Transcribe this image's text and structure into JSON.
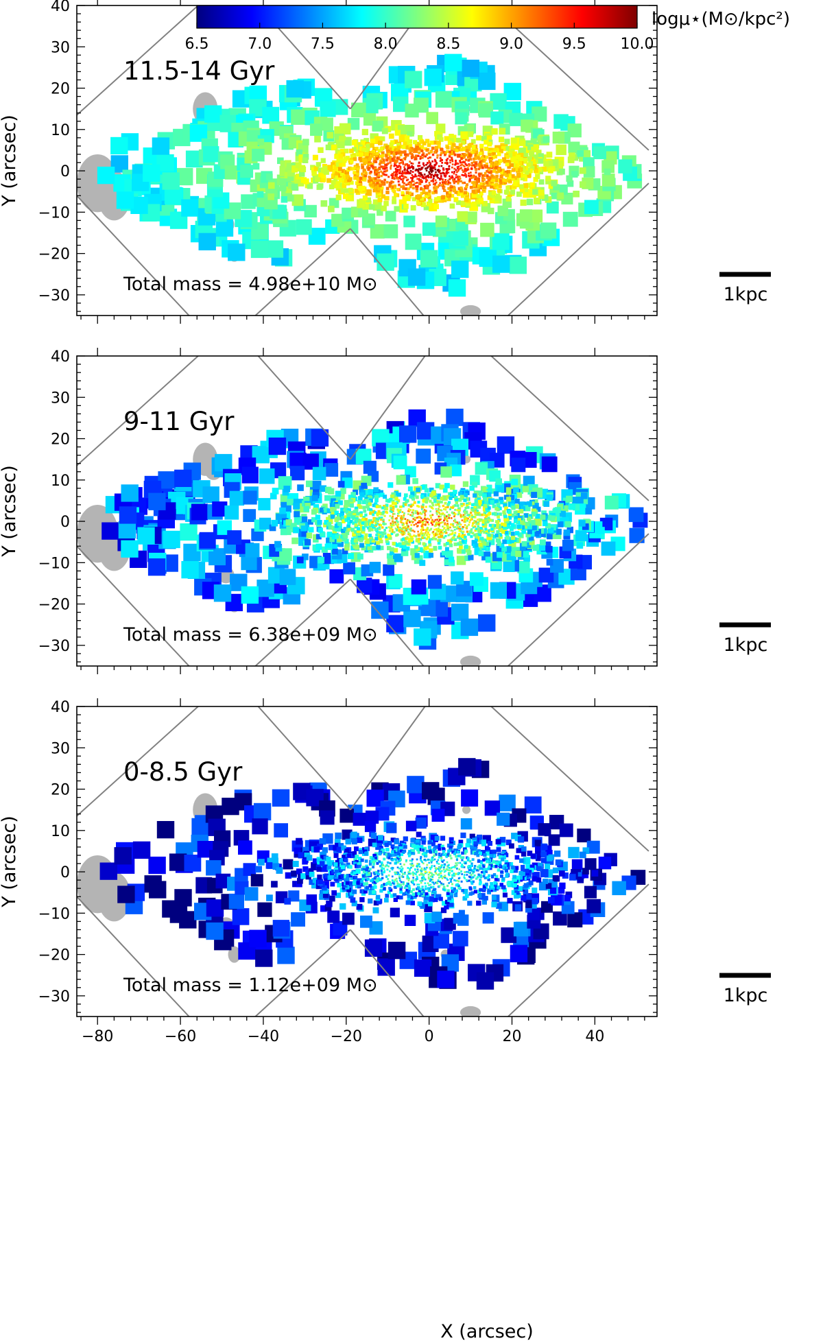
{
  "chart_data": {
    "type": "heatmap",
    "xlabel": "X (arcsec)",
    "ylabel": "Y (arcsec)",
    "xlim": [
      -85,
      55
    ],
    "ylim": [
      -35,
      40
    ],
    "x_ticks": [
      -80,
      -60,
      -40,
      -20,
      0,
      20,
      40
    ],
    "y_ticks": [
      -30,
      -20,
      -10,
      0,
      10,
      20,
      30,
      40
    ],
    "colorbar": {
      "label": "logμ⋆(M⊙/kpc²)",
      "min": 6.5,
      "max": 10.0,
      "ticks": [
        "6.5",
        "7.0",
        "7.5",
        "8.0",
        "8.5",
        "9.0",
        "9.5",
        "10.0"
      ],
      "colormap": [
        "#00007f",
        "#0000ff",
        "#007fff",
        "#00ffff",
        "#7fff7f",
        "#ffff00",
        "#ff7f00",
        "#ff0000",
        "#7f0000"
      ]
    },
    "panels": [
      {
        "age_bin": "11.5-14 Gyr",
        "total_mass": "Total mass = 4.98e+10 M⊙",
        "scale_bar": "1kpc",
        "core_logmu": 10.0,
        "edge_logmu": 7.6,
        "sparsity": 0.0
      },
      {
        "age_bin": "9-11 Gyr",
        "total_mass": "Total mass = 6.38e+09 M⊙",
        "scale_bar": "1kpc",
        "core_logmu": 9.1,
        "edge_logmu": 7.1,
        "sparsity": 0.08
      },
      {
        "age_bin": "0-8.5 Gyr",
        "total_mass": "Total mass = 1.12e+09 M⊙",
        "scale_bar": "1kpc",
        "core_logmu": 8.2,
        "edge_logmu": 6.6,
        "sparsity": 0.33
      }
    ],
    "colors": {
      "masked": "#b4b4b4",
      "footprint": "#808080",
      "frame": "#000000"
    }
  }
}
